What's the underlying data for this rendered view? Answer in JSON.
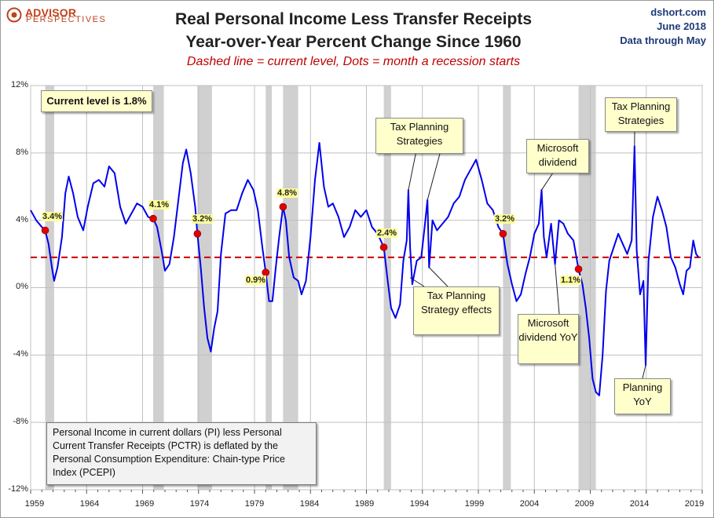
{
  "header": {
    "logo_text": "ADVISOR",
    "logo_sub": "PERSPECTIVES",
    "title_line1": "Real Personal Income Less Transfer Receipts",
    "title_line2": "Year-over-Year Percent Change Since 1960",
    "subtitle": "Dashed line = current level, Dots = month a recession starts",
    "source_line1": "dshort.com",
    "source_line2": "June 2018",
    "source_line3": "Data through May"
  },
  "current_level_label": "Current level is 1.8%",
  "note": "Personal Income in current dollars  (PI) less Personal Current Transfer Receipts (PCTR) is deflated by the Personal Consumption Expenditure: Chain-type Price Index (PCEPI)",
  "callouts": {
    "tax_planning_1": "Tax Planning Strategies",
    "tax_planning_effects": "Tax Planning Strategy effects",
    "microsoft_dividend": "Microsoft dividend",
    "microsoft_dividend_yoy": "Microsoft dividend YoY",
    "tax_planning_2": "Tax Planning Strategies",
    "planning_yoy": "Planning YoY"
  },
  "colors": {
    "line": "#0000ee",
    "dashed_current": "#cc0000",
    "recession_dot": "#e00000",
    "recession_band": "#c8c8c8",
    "callout_bg": "#ffffcc"
  },
  "chart_data": {
    "type": "line",
    "xlabel": "",
    "ylabel": "",
    "xlim": [
      1959,
      2019
    ],
    "ylim": [
      -12,
      12
    ],
    "x_ticks": [
      "1959",
      "1964",
      "1969",
      "1974",
      "1979",
      "1984",
      "1989",
      "1994",
      "1999",
      "2004",
      "2009",
      "2014",
      "2019"
    ],
    "y_ticks": [
      "12%",
      "8%",
      "4%",
      "0%",
      "-4%",
      "-8%",
      "-12%"
    ],
    "grid": true,
    "current_level": 1.8,
    "recessions": [
      {
        "start": 1960.3,
        "end": 1961.1,
        "label": "3.4%",
        "value": 3.4
      },
      {
        "start": 1969.95,
        "end": 1970.9,
        "label": "4.1%",
        "value": 4.1
      },
      {
        "start": 1973.9,
        "end": 1975.2,
        "label": "3.2%",
        "value": 3.2
      },
      {
        "start": 1980.0,
        "end": 1980.55,
        "label": "0.9%",
        "value": 0.9
      },
      {
        "start": 1981.55,
        "end": 1982.9,
        "label": "4.8%",
        "value": 4.8
      },
      {
        "start": 1990.55,
        "end": 1991.2,
        "label": "2.4%",
        "value": 2.4
      },
      {
        "start": 2001.2,
        "end": 2001.9,
        "label": "3.2%",
        "value": 3.2
      },
      {
        "start": 2007.95,
        "end": 2009.5,
        "label": "1.1%",
        "value": 1.1
      }
    ],
    "series": [
      {
        "values": [
          [
            1959.0,
            4.6
          ],
          [
            1959.5,
            4.0
          ],
          [
            1960.0,
            3.6
          ],
          [
            1960.3,
            3.4
          ],
          [
            1960.6,
            2.6
          ],
          [
            1960.9,
            1.2
          ],
          [
            1961.1,
            0.4
          ],
          [
            1961.4,
            1.2
          ],
          [
            1961.8,
            3.0
          ],
          [
            1962.1,
            5.6
          ],
          [
            1962.4,
            6.6
          ],
          [
            1962.8,
            5.6
          ],
          [
            1963.2,
            4.2
          ],
          [
            1963.7,
            3.4
          ],
          [
            1964.1,
            4.8
          ],
          [
            1964.6,
            6.2
          ],
          [
            1965.1,
            6.4
          ],
          [
            1965.6,
            6.0
          ],
          [
            1966.0,
            7.2
          ],
          [
            1966.5,
            6.8
          ],
          [
            1967.0,
            4.8
          ],
          [
            1967.5,
            3.8
          ],
          [
            1968.0,
            4.4
          ],
          [
            1968.5,
            5.0
          ],
          [
            1969.0,
            4.8
          ],
          [
            1969.5,
            4.2
          ],
          [
            1969.95,
            4.1
          ],
          [
            1970.3,
            3.6
          ],
          [
            1970.7,
            2.2
          ],
          [
            1971.0,
            1.0
          ],
          [
            1971.4,
            1.4
          ],
          [
            1971.8,
            3.0
          ],
          [
            1972.2,
            5.2
          ],
          [
            1972.6,
            7.4
          ],
          [
            1972.9,
            8.2
          ],
          [
            1973.3,
            6.8
          ],
          [
            1973.7,
            4.8
          ],
          [
            1973.9,
            3.2
          ],
          [
            1974.2,
            1.2
          ],
          [
            1974.5,
            -1.2
          ],
          [
            1974.8,
            -3.0
          ],
          [
            1975.1,
            -3.8
          ],
          [
            1975.4,
            -2.4
          ],
          [
            1975.7,
            -1.4
          ],
          [
            1976.0,
            2.0
          ],
          [
            1976.4,
            4.4
          ],
          [
            1976.9,
            4.6
          ],
          [
            1977.4,
            4.6
          ],
          [
            1977.9,
            5.6
          ],
          [
            1978.4,
            6.4
          ],
          [
            1978.9,
            5.8
          ],
          [
            1979.3,
            4.6
          ],
          [
            1979.7,
            2.4
          ],
          [
            1980.0,
            0.9
          ],
          [
            1980.3,
            -0.8
          ],
          [
            1980.6,
            -0.8
          ],
          [
            1980.9,
            1.2
          ],
          [
            1981.2,
            3.0
          ],
          [
            1981.55,
            4.8
          ],
          [
            1981.8,
            4.0
          ],
          [
            1982.1,
            1.8
          ],
          [
            1982.5,
            0.6
          ],
          [
            1982.9,
            0.4
          ],
          [
            1983.2,
            -0.4
          ],
          [
            1983.6,
            0.4
          ],
          [
            1984.0,
            3.0
          ],
          [
            1984.4,
            6.4
          ],
          [
            1984.8,
            8.6
          ],
          [
            1985.2,
            6.0
          ],
          [
            1985.6,
            4.8
          ],
          [
            1986.0,
            5.0
          ],
          [
            1986.5,
            4.2
          ],
          [
            1987.0,
            3.0
          ],
          [
            1987.5,
            3.6
          ],
          [
            1988.0,
            4.6
          ],
          [
            1988.5,
            4.2
          ],
          [
            1989.0,
            4.6
          ],
          [
            1989.5,
            3.6
          ],
          [
            1990.0,
            3.2
          ],
          [
            1990.55,
            2.4
          ],
          [
            1990.9,
            0.4
          ],
          [
            1991.2,
            -1.2
          ],
          [
            1991.6,
            -1.8
          ],
          [
            1992.0,
            -1.0
          ],
          [
            1992.3,
            1.6
          ],
          [
            1992.6,
            2.8
          ],
          [
            1992.75,
            5.8
          ],
          [
            1992.9,
            2.4
          ],
          [
            1993.1,
            0.2
          ],
          [
            1993.5,
            1.6
          ],
          [
            1993.9,
            1.8
          ],
          [
            1994.2,
            3.6
          ],
          [
            1994.45,
            5.2
          ],
          [
            1994.6,
            1.2
          ],
          [
            1994.9,
            4.0
          ],
          [
            1995.3,
            3.4
          ],
          [
            1995.8,
            3.8
          ],
          [
            1996.3,
            4.2
          ],
          [
            1996.8,
            5.0
          ],
          [
            1997.3,
            5.4
          ],
          [
            1997.8,
            6.4
          ],
          [
            1998.3,
            7.0
          ],
          [
            1998.8,
            7.6
          ],
          [
            1999.3,
            6.4
          ],
          [
            1999.8,
            5.0
          ],
          [
            2000.3,
            4.6
          ],
          [
            2000.8,
            3.6
          ],
          [
            2001.2,
            3.2
          ],
          [
            2001.6,
            1.4
          ],
          [
            2002.0,
            0.2
          ],
          [
            2002.4,
            -0.8
          ],
          [
            2002.8,
            -0.4
          ],
          [
            2003.2,
            0.8
          ],
          [
            2003.6,
            1.8
          ],
          [
            2004.0,
            3.2
          ],
          [
            2004.4,
            3.8
          ],
          [
            2004.65,
            5.8
          ],
          [
            2004.85,
            3.0
          ],
          [
            2005.1,
            1.8
          ],
          [
            2005.5,
            3.8
          ],
          [
            2005.85,
            1.4
          ],
          [
            2006.2,
            4.0
          ],
          [
            2006.6,
            3.8
          ],
          [
            2007.0,
            3.2
          ],
          [
            2007.5,
            2.8
          ],
          [
            2007.95,
            1.1
          ],
          [
            2008.3,
            0.2
          ],
          [
            2008.6,
            -1.2
          ],
          [
            2008.9,
            -3.0
          ],
          [
            2009.2,
            -5.4
          ],
          [
            2009.5,
            -6.2
          ],
          [
            2009.8,
            -6.4
          ],
          [
            2010.1,
            -4.0
          ],
          [
            2010.4,
            -0.2
          ],
          [
            2010.7,
            1.6
          ],
          [
            2011.1,
            2.4
          ],
          [
            2011.5,
            3.2
          ],
          [
            2011.9,
            2.6
          ],
          [
            2012.3,
            2.0
          ],
          [
            2012.7,
            2.8
          ],
          [
            2012.95,
            8.4
          ],
          [
            2013.15,
            2.2
          ],
          [
            2013.45,
            -0.4
          ],
          [
            2013.75,
            0.4
          ],
          [
            2013.95,
            -4.6
          ],
          [
            2014.2,
            1.6
          ],
          [
            2014.6,
            4.2
          ],
          [
            2015.0,
            5.4
          ],
          [
            2015.4,
            4.6
          ],
          [
            2015.8,
            3.6
          ],
          [
            2016.2,
            1.8
          ],
          [
            2016.6,
            1.2
          ],
          [
            2017.0,
            0.2
          ],
          [
            2017.3,
            -0.4
          ],
          [
            2017.6,
            1.0
          ],
          [
            2017.9,
            1.2
          ],
          [
            2018.2,
            2.8
          ],
          [
            2018.45,
            2.0
          ],
          [
            2018.67,
            1.8
          ]
        ]
      }
    ],
    "annotations": [
      "Tax Planning Strategies",
      "Tax Planning Strategy effects",
      "Microsoft dividend",
      "Microsoft dividend YoY",
      "Tax Planning Strategies",
      "Planning YoY",
      "Current level is 1.8%"
    ]
  }
}
